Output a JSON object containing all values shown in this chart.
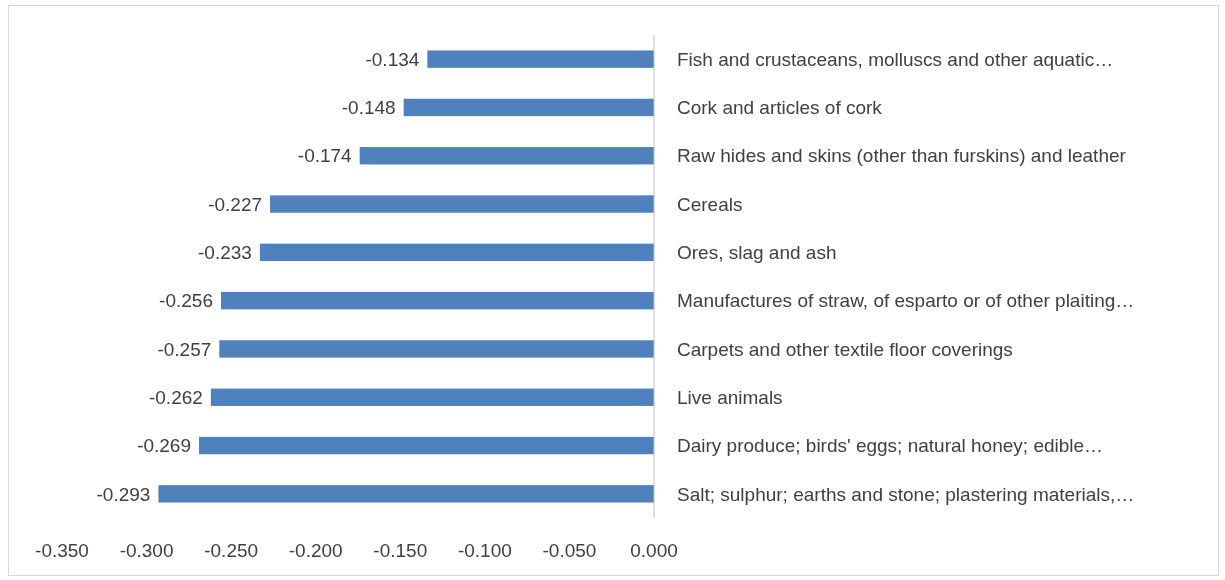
{
  "chart_data": {
    "type": "bar",
    "orientation": "horizontal",
    "categories": [
      "Fish and crustaceans, molluscs and other aquatic…",
      "Cork and articles of cork",
      "Raw hides and skins (other than furskins) and leather",
      "Cereals",
      "Ores, slag and ash",
      "Manufactures of straw, of esparto or of other plaiting…",
      "Carpets and other textile floor coverings",
      "Live animals",
      "Dairy produce; birds' eggs; natural honey; edible…",
      "Salt; sulphur; earths and stone; plastering materials,…"
    ],
    "values": [
      -0.134,
      -0.148,
      -0.174,
      -0.227,
      -0.233,
      -0.256,
      -0.257,
      -0.262,
      -0.269,
      -0.293
    ],
    "color": "#4f81bd",
    "data_labels": true,
    "grid": false,
    "xlim": [
      -0.35,
      0
    ],
    "xticks": [
      {
        "value": -0.35,
        "label": "-0.350"
      },
      {
        "value": -0.3,
        "label": "-0.300"
      },
      {
        "value": -0.25,
        "label": "-0.250"
      },
      {
        "value": -0.2,
        "label": "-0.200"
      },
      {
        "value": -0.15,
        "label": "-0.150"
      },
      {
        "value": -0.1,
        "label": "-0.100"
      },
      {
        "value": -0.05,
        "label": "-0.050"
      },
      {
        "value": 0,
        "label": "0.000"
      }
    ]
  }
}
